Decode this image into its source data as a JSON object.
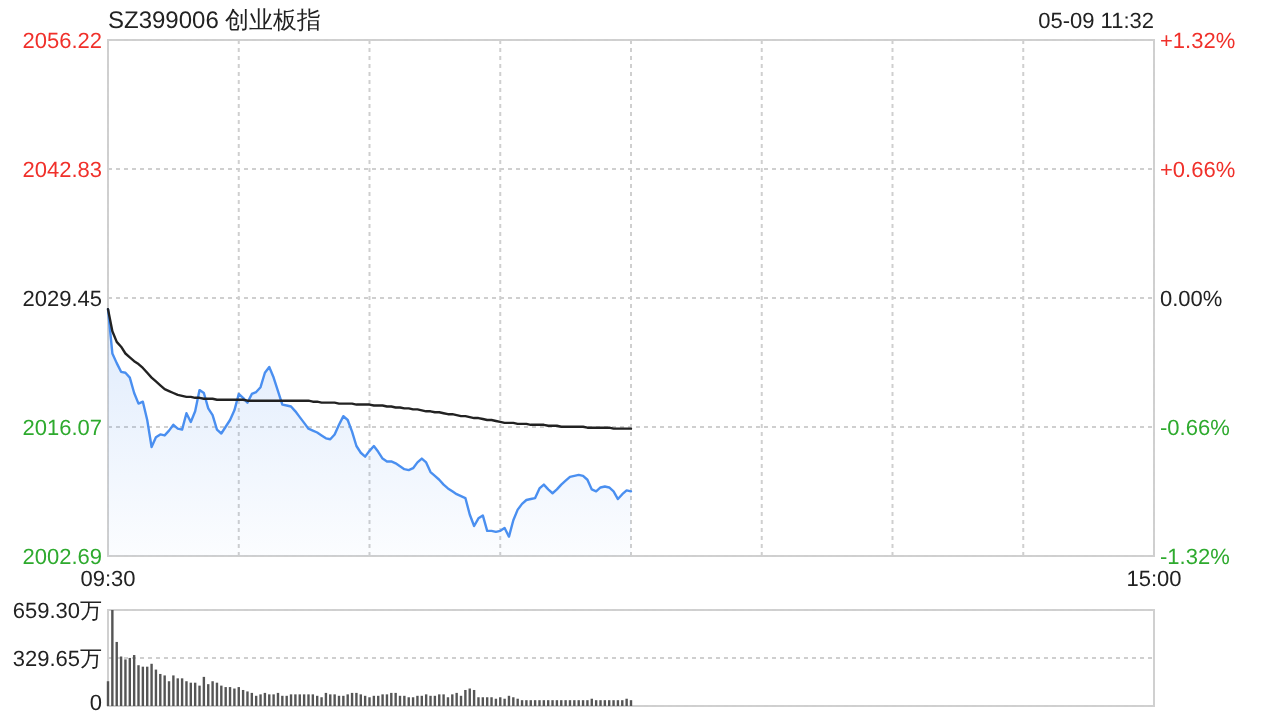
{
  "chart_data": [
    {
      "type": "line",
      "title": "SZ399006 创业板指",
      "subtitle": "05-09 11:32",
      "categories": [
        "09:30",
        null,
        null,
        null,
        null,
        null,
        null,
        null,
        null,
        null,
        null,
        null,
        null,
        null,
        null,
        null,
        null,
        null,
        null,
        null,
        null,
        null,
        null,
        null,
        null,
        null,
        null,
        null,
        null,
        null,
        null,
        null,
        null,
        null,
        null,
        null,
        null,
        null,
        null,
        null,
        null,
        null,
        null,
        null,
        null,
        null,
        null,
        null,
        null,
        null,
        null,
        null,
        null,
        null,
        null,
        null,
        null,
        null,
        null,
        null,
        null,
        null,
        null,
        null,
        null,
        null,
        null,
        null,
        null,
        null,
        null,
        null,
        null,
        null,
        null,
        null,
        null,
        null,
        null,
        null,
        null,
        null,
        null,
        null,
        null,
        null,
        null,
        null,
        null,
        null,
        null,
        null,
        null,
        null,
        null,
        null,
        null,
        null,
        null,
        null,
        null,
        null,
        null,
        null,
        null,
        null,
        null,
        null,
        null,
        null,
        null,
        null,
        null,
        null,
        null,
        null,
        null,
        null,
        null,
        null,
        null,
        null,
        null,
        null,
        null,
        null,
        null,
        null,
        null,
        null,
        null,
        null,
        null,
        null,
        null,
        null,
        null,
        null,
        null,
        null,
        null,
        null,
        null,
        null,
        null,
        null,
        null,
        null,
        null,
        null,
        null,
        null,
        null,
        null,
        null,
        null,
        null,
        null,
        null,
        null,
        null,
        null,
        null,
        null,
        null,
        null,
        null,
        null,
        null,
        null,
        null,
        null,
        null,
        null,
        null,
        null,
        null,
        null,
        null,
        null,
        null,
        null,
        null,
        null,
        null,
        null,
        null,
        null,
        null,
        null,
        null,
        null,
        null,
        null,
        null,
        null,
        null,
        null,
        null,
        null,
        null,
        null,
        null,
        null,
        null,
        null,
        null,
        null,
        null,
        null,
        null,
        null,
        null,
        null,
        null,
        null,
        null,
        null,
        null,
        null,
        null,
        null,
        null,
        null,
        null,
        null,
        null,
        null,
        null,
        null,
        null,
        null,
        null,
        null,
        null,
        null,
        null,
        null,
        null,
        null,
        "15:00"
      ],
      "ylim": [
        2002.69,
        2056.22
      ],
      "yticks": [
        2002.69,
        2016.07,
        2029.45,
        2042.83,
        2056.22
      ],
      "y2lim": [
        -1.32,
        1.32
      ],
      "y2ticks": [
        {
          "value": -1.32,
          "label": "-1.32%"
        },
        {
          "value": -0.66,
          "label": "-0.66%"
        },
        {
          "value": 0,
          "label": "0.00%"
        },
        {
          "value": 0.66,
          "label": "+0.66%"
        },
        {
          "value": 1.32,
          "label": "+1.32%"
        }
      ],
      "grid": true,
      "series": [
        {
          "type": "area",
          "color": "#4a8ff0",
          "values": [
            2028.3,
            2023.7,
            2022.7,
            2021.8,
            2021.7,
            2021.2,
            2019.6,
            2018.5,
            2018.7,
            2016.8,
            2014.0,
            2015.0,
            2015.3,
            2015.2,
            2015.7,
            2016.3,
            2015.9,
            2015.8,
            2017.5,
            2016.6,
            2017.7,
            2019.9,
            2019.6,
            2018.0,
            2017.3,
            2015.8,
            2015.4,
            2016.1,
            2016.8,
            2017.8,
            2019.5,
            2019.1,
            2018.6,
            2019.5,
            2019.7,
            2020.2,
            2021.7,
            2022.3,
            2021.2,
            2019.8,
            2018.4,
            2018.3,
            2018.2,
            2017.7,
            2017.1,
            2016.5,
            2015.9,
            2015.7,
            2015.5,
            2015.2,
            2014.9,
            2014.8,
            2015.3,
            2016.3,
            2017.2,
            2016.8,
            2015.6,
            2014.1,
            2013.4,
            2013.0,
            2013.6,
            2014.1,
            2013.5,
            2012.8,
            2012.5,
            2012.5,
            2012.3,
            2012.0,
            2011.7,
            2011.6,
            2011.8,
            2012.4,
            2012.8,
            2012.4,
            2011.4,
            2011.0,
            2010.6,
            2010.1,
            2009.7,
            2009.4,
            2009.1,
            2008.9,
            2008.7,
            2007.0,
            2005.8,
            2006.6,
            2006.9,
            2005.3,
            2005.3,
            2005.2,
            2005.3,
            2005.6,
            2004.7,
            2006.4,
            2007.5,
            2008.1,
            2008.5,
            2008.6,
            2008.7,
            2009.7,
            2010.1,
            2009.6,
            2009.2,
            2009.6,
            2010.1,
            2010.5,
            2010.9,
            2011.0,
            2011.1,
            2011.0,
            2010.6,
            2009.6,
            2009.4,
            2009.8,
            2009.9,
            2009.8,
            2009.4,
            2008.6,
            2009.1,
            2009.5,
            2009.4,
            null,
            null,
            null,
            null,
            null,
            null,
            null,
            null,
            null,
            null,
            null,
            null,
            null,
            null,
            null,
            null,
            null,
            null,
            null,
            null,
            null,
            null,
            null,
            null,
            null,
            null,
            null,
            null,
            null,
            null,
            null,
            null,
            null,
            null,
            null,
            null,
            null,
            null,
            null,
            null,
            null,
            null,
            null,
            null,
            null,
            null,
            null,
            null,
            null,
            null,
            null,
            null,
            null,
            null,
            null,
            null,
            null,
            null,
            null,
            null,
            null,
            null,
            null,
            null,
            null,
            null,
            null,
            null,
            null,
            null,
            null,
            null,
            null,
            null,
            null,
            null,
            null,
            null,
            null,
            null,
            null,
            null,
            null,
            null,
            null,
            null,
            null,
            null,
            null,
            null,
            null,
            null,
            null,
            null,
            null,
            null,
            null,
            null,
            null,
            null,
            null,
            null,
            null,
            null,
            null,
            null,
            null,
            null,
            null,
            null,
            null,
            null,
            null,
            null,
            null,
            null,
            null,
            null,
            null,
            null
          ]
        },
        {
          "color": "#222222",
          "values": [
            2028.3,
            2026.0,
            2024.9,
            2024.4,
            2023.7,
            2023.3,
            2022.9,
            2022.6,
            2022.2,
            2021.7,
            2021.2,
            2020.8,
            2020.4,
            2020.0,
            2019.8,
            2019.6,
            2019.4,
            2019.3,
            2019.2,
            2019.2,
            2019.1,
            2019.1,
            2019.0,
            2019.0,
            2019.0,
            2018.9,
            2018.9,
            2018.9,
            2018.9,
            2018.9,
            2018.9,
            2018.9,
            2018.8,
            2018.8,
            2018.8,
            2018.8,
            2018.8,
            2018.8,
            2018.8,
            2018.8,
            2018.8,
            2018.8,
            2018.8,
            2018.8,
            2018.8,
            2018.8,
            2018.8,
            2018.7,
            2018.7,
            2018.6,
            2018.6,
            2018.6,
            2018.6,
            2018.5,
            2018.5,
            2018.5,
            2018.5,
            2018.4,
            2018.4,
            2018.4,
            2018.4,
            2018.3,
            2018.3,
            2018.3,
            2018.2,
            2018.2,
            2018.1,
            2018.1,
            2018.0,
            2018.0,
            2017.9,
            2017.9,
            2017.8,
            2017.7,
            2017.7,
            2017.6,
            2017.6,
            2017.5,
            2017.4,
            2017.4,
            2017.3,
            2017.2,
            2017.2,
            2017.1,
            2017.0,
            2017.0,
            2016.9,
            2016.8,
            2016.8,
            2016.7,
            2016.6,
            2016.5,
            2016.5,
            2016.5,
            2016.4,
            2016.4,
            2016.4,
            2016.3,
            2016.3,
            2016.3,
            2016.3,
            2016.2,
            2016.2,
            2016.2,
            2016.1,
            2016.1,
            2016.1,
            2016.1,
            2016.1,
            2016.1,
            2016.0,
            2016.0,
            2016.0,
            2016.0,
            2016.0,
            2016.0,
            2015.9,
            2015.9,
            2015.9,
            2015.9,
            2015.9,
            null,
            null,
            null,
            null,
            null,
            null,
            null,
            null,
            null,
            null,
            null,
            null,
            null,
            null,
            null,
            null,
            null,
            null,
            null,
            null,
            null,
            null,
            null,
            null,
            null,
            null,
            null,
            null,
            null,
            null,
            null,
            null,
            null,
            null,
            null,
            null,
            null,
            null,
            null,
            null,
            null,
            null,
            null,
            null,
            null,
            null,
            null,
            null,
            null,
            null,
            null,
            null,
            null,
            null,
            null,
            null,
            null,
            null,
            null,
            null,
            null,
            null,
            null,
            null,
            null,
            null,
            null,
            null,
            null,
            null,
            null,
            null,
            null,
            null,
            null,
            null,
            null,
            null,
            null,
            null,
            null,
            null,
            null,
            null,
            null,
            null,
            null,
            null,
            null,
            null,
            null,
            null,
            null,
            null,
            null,
            null,
            null,
            null,
            null,
            null,
            null,
            null,
            null,
            null,
            null,
            null,
            null,
            null,
            null,
            null,
            null,
            null,
            null,
            null,
            null,
            null,
            null,
            null,
            null,
            null
          ]
        }
      ]
    },
    {
      "type": "bar",
      "color": "#555555",
      "ylim": [
        0,
        659.3
      ],
      "yticks": [
        0,
        {
          "value": 329.65,
          "label": "329.65万"
        },
        {
          "value": 659.3,
          "label": "659.30万"
        }
      ],
      "grid": "y",
      "tick_labels": "y",
      "categories": [
        null,
        null,
        null,
        null,
        null,
        null,
        null,
        null,
        null,
        null,
        null,
        null,
        null,
        null,
        null,
        null,
        null,
        null,
        null,
        null,
        null,
        null,
        null,
        null,
        null,
        null,
        null,
        null,
        null,
        null,
        null,
        null,
        null,
        null,
        null,
        null,
        null,
        null,
        null,
        null,
        null,
        null,
        null,
        null,
        null,
        null,
        null,
        null,
        null,
        null,
        null,
        null,
        null,
        null,
        null,
        null,
        null,
        null,
        null,
        null,
        null,
        null,
        null,
        null,
        null,
        null,
        null,
        null,
        null,
        null,
        null,
        null,
        null,
        null,
        null,
        null,
        null,
        null,
        null,
        null,
        null,
        null,
        null,
        null,
        null,
        null,
        null,
        null,
        null,
        null,
        null,
        null,
        null,
        null,
        null,
        null,
        null,
        null,
        null,
        null,
        null,
        null,
        null,
        null,
        null,
        null,
        null,
        null,
        null,
        null,
        null,
        null,
        null,
        null,
        null,
        null,
        null,
        null,
        null,
        null,
        null,
        null,
        null,
        null,
        null,
        null,
        null,
        null,
        null,
        null,
        null,
        null,
        null,
        null,
        null,
        null,
        null,
        null,
        null,
        null,
        null,
        null,
        null,
        null,
        null,
        null,
        null,
        null,
        null,
        null,
        null,
        null,
        null,
        null,
        null,
        null,
        null,
        null,
        null,
        null,
        null,
        null,
        null,
        null,
        null,
        null,
        null,
        null,
        null,
        null,
        null,
        null,
        null,
        null,
        null,
        null,
        null,
        null,
        null,
        null,
        null,
        null,
        null,
        null,
        null,
        null,
        null,
        null,
        null,
        null,
        null,
        null,
        null,
        null,
        null,
        null,
        null,
        null,
        null,
        null,
        null,
        null,
        null,
        null,
        null,
        null,
        null,
        null,
        null,
        null,
        null,
        null,
        null,
        null,
        null,
        null,
        null,
        null,
        null,
        null,
        null,
        null,
        null,
        null,
        null,
        null,
        null,
        null,
        null,
        null,
        null,
        null,
        null,
        null,
        null,
        null,
        null,
        null,
        null,
        null,
        null
      ],
      "values": [
        170,
        659.3,
        440,
        340,
        320,
        330,
        350,
        280,
        270,
        270,
        290,
        250,
        220,
        210,
        170,
        210,
        190,
        190,
        170,
        160,
        160,
        140,
        200,
        150,
        170,
        160,
        140,
        130,
        130,
        120,
        130,
        110,
        100,
        90,
        70,
        80,
        90,
        80,
        80,
        90,
        70,
        70,
        80,
        80,
        80,
        80,
        80,
        80,
        70,
        60,
        90,
        80,
        80,
        70,
        70,
        80,
        90,
        90,
        80,
        70,
        60,
        70,
        70,
        80,
        80,
        90,
        90,
        70,
        70,
        60,
        60,
        70,
        70,
        80,
        70,
        70,
        80,
        80,
        60,
        80,
        90,
        70,
        110,
        120,
        110,
        60,
        60,
        60,
        60,
        50,
        60,
        50,
        70,
        60,
        50,
        40,
        40,
        40,
        40,
        40,
        40,
        40,
        40,
        40,
        40,
        40,
        40,
        40,
        40,
        40,
        40,
        50,
        40,
        40,
        40,
        40,
        40,
        40,
        40,
        50,
        40,
        null,
        null,
        null,
        null,
        null,
        null,
        null,
        null,
        null,
        null,
        null,
        null,
        null,
        null,
        null,
        null,
        null,
        null,
        null,
        null,
        null,
        null,
        null,
        null,
        null,
        null,
        null,
        null,
        null,
        null,
        null,
        null,
        null,
        null,
        null,
        null,
        null,
        null,
        null,
        null,
        null,
        null,
        null,
        null,
        null,
        null,
        null,
        null,
        null,
        null,
        null,
        null,
        null,
        null,
        null,
        null,
        null,
        null,
        null,
        null,
        null,
        null,
        null,
        null,
        null,
        null,
        null,
        null,
        null,
        null,
        null,
        null,
        null,
        null,
        null,
        null,
        null,
        null,
        null,
        null,
        null,
        null,
        null,
        null,
        null,
        null,
        null,
        null,
        null,
        null,
        null,
        null,
        null,
        null,
        null,
        null,
        null,
        null,
        null,
        null,
        null,
        null,
        null,
        null,
        null,
        null,
        null,
        null,
        null,
        null,
        null,
        null,
        null,
        null,
        null,
        null,
        null,
        null,
        null,
        null
      ]
    }
  ]
}
